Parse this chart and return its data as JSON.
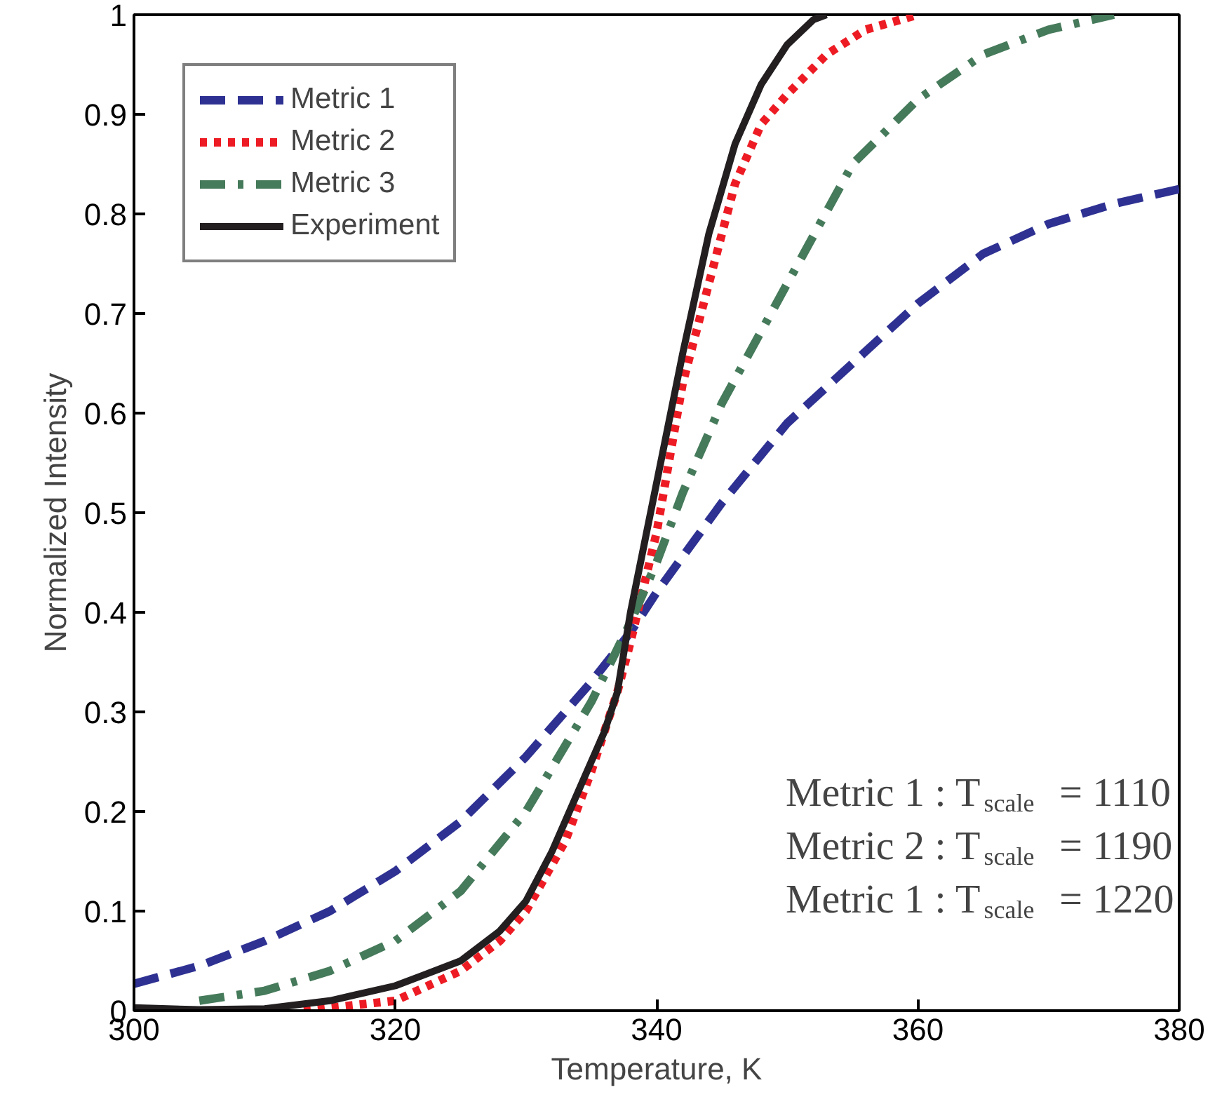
{
  "chart_data": {
    "type": "line",
    "xlabel": "Temperature, K",
    "ylabel": "Normalized Intensity",
    "xlim": [
      300,
      380
    ],
    "ylim": [
      0,
      1
    ],
    "xticks": [
      300,
      320,
      340,
      360,
      380
    ],
    "yticks": [
      0,
      0.1,
      0.2,
      0.3,
      0.4,
      0.5,
      0.6,
      0.7,
      0.8,
      0.9,
      1
    ],
    "grid": false,
    "legend": "top left",
    "marker": "none",
    "series": [
      {
        "name": "Metric 1",
        "color": "#2e3192",
        "line_style": "dashed",
        "x": [
          300,
          305,
          310,
          315,
          320,
          325,
          330,
          335,
          338,
          340,
          345,
          350,
          355,
          360,
          365,
          370,
          375,
          380
        ],
        "values": [
          0.027,
          0.045,
          0.07,
          0.1,
          0.14,
          0.19,
          0.255,
          0.33,
          0.38,
          0.42,
          0.51,
          0.59,
          0.65,
          0.71,
          0.76,
          0.79,
          0.81,
          0.825
        ]
      },
      {
        "name": "Metric 2",
        "color": "#ed1c24",
        "line_style": "dotted",
        "x": [
          313,
          315,
          320,
          325,
          328,
          330,
          333,
          335,
          337,
          338,
          340,
          342,
          344,
          346,
          348,
          350,
          353,
          356,
          360
        ],
        "values": [
          0,
          0.003,
          0.01,
          0.04,
          0.07,
          0.1,
          0.17,
          0.24,
          0.32,
          0.37,
          0.48,
          0.63,
          0.73,
          0.83,
          0.89,
          0.92,
          0.96,
          0.985,
          1.0
        ]
      },
      {
        "name": "Metric 3",
        "color": "#457a5a",
        "line_style": "dashdot",
        "x": [
          305,
          310,
          315,
          320,
          325,
          330,
          335,
          338,
          340,
          342,
          345,
          350,
          355,
          360,
          365,
          370,
          375
        ],
        "values": [
          0.01,
          0.02,
          0.04,
          0.07,
          0.12,
          0.2,
          0.31,
          0.39,
          0.45,
          0.52,
          0.61,
          0.73,
          0.85,
          0.915,
          0.96,
          0.985,
          1.0
        ]
      },
      {
        "name": "Experiment",
        "color": "#231f20",
        "line_style": "solid",
        "x": [
          300,
          305,
          310,
          315,
          320,
          322,
          325,
          328,
          330,
          332,
          334,
          336,
          337,
          338,
          340,
          342,
          344,
          346,
          348,
          350,
          352,
          353
        ],
        "values": [
          0.003,
          0.001,
          0.002,
          0.01,
          0.025,
          0.035,
          0.05,
          0.08,
          0.11,
          0.16,
          0.22,
          0.28,
          0.32,
          0.4,
          0.53,
          0.66,
          0.78,
          0.87,
          0.93,
          0.97,
          0.995,
          1.0
        ]
      }
    ],
    "annotations": [
      "Metric 1 : T$_{scale}$ = 1110",
      "Metric 2 : T$_{scale}$ = 1190",
      "Metric 1 : T$_{scale}$ = 1220"
    ]
  }
}
